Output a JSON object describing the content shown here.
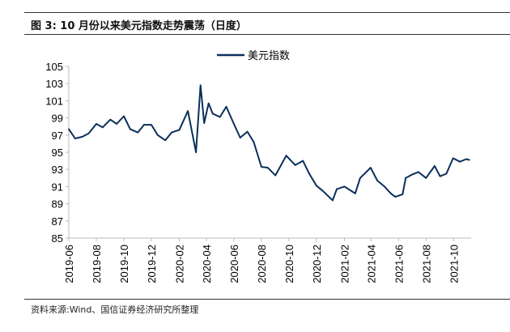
{
  "title": "图 3:  10 月份以来美元指数走势震荡（日度）",
  "source": "资料来源:Wind、国信证券经济研究所整理",
  "chart_data": {
    "type": "line",
    "title": "图 3:  10 月份以来美元指数走势震荡（日度）",
    "xlabel": "",
    "ylabel": "",
    "ylim": [
      85,
      105
    ],
    "yticks": [
      85,
      87,
      89,
      91,
      93,
      95,
      97,
      99,
      101,
      103,
      105
    ],
    "xticks": [
      "2019-06",
      "2019-08",
      "2019-10",
      "2019-12",
      "2020-02",
      "2020-04",
      "2020-06",
      "2020-08",
      "2020-10",
      "2020-12",
      "2021-02",
      "2021-04",
      "2021-06",
      "2021-08",
      "2021-10"
    ],
    "xrange": [
      "2019-06-01",
      "2021-11-09"
    ],
    "grid": false,
    "legend": "top-center",
    "color": "#0b2f5b",
    "series": [
      {
        "name": "美元指数",
        "x": [
          "2019-06-01",
          "2019-06-15",
          "2019-07-01",
          "2019-07-15",
          "2019-08-01",
          "2019-08-15",
          "2019-09-01",
          "2019-09-15",
          "2019-10-01",
          "2019-10-15",
          "2019-11-01",
          "2019-11-15",
          "2019-12-01",
          "2019-12-15",
          "2020-01-01",
          "2020-01-15",
          "2020-02-01",
          "2020-02-20",
          "2020-03-09",
          "2020-03-19",
          "2020-03-27",
          "2020-04-06",
          "2020-04-15",
          "2020-05-01",
          "2020-05-15",
          "2020-06-01",
          "2020-06-15",
          "2020-07-01",
          "2020-07-15",
          "2020-08-01",
          "2020-08-15",
          "2020-09-01",
          "2020-09-25",
          "2020-10-15",
          "2020-11-01",
          "2020-11-15",
          "2020-12-01",
          "2020-12-15",
          "2021-01-06",
          "2021-01-15",
          "2021-02-01",
          "2021-02-25",
          "2021-03-08",
          "2021-03-31",
          "2021-04-15",
          "2021-05-01",
          "2021-05-15",
          "2021-05-25",
          "2021-06-10",
          "2021-06-17",
          "2021-07-01",
          "2021-07-15",
          "2021-08-01",
          "2021-08-20",
          "2021-09-01",
          "2021-09-15",
          "2021-09-30",
          "2021-10-15",
          "2021-10-29",
          "2021-11-05"
        ],
        "values": [
          97.7,
          96.6,
          96.8,
          97.2,
          98.3,
          97.9,
          98.8,
          98.3,
          99.2,
          97.7,
          97.3,
          98.2,
          98.2,
          97.0,
          96.4,
          97.3,
          97.6,
          99.8,
          95.0,
          102.8,
          98.4,
          100.7,
          99.5,
          99.1,
          100.3,
          98.3,
          96.7,
          97.4,
          96.2,
          93.3,
          93.2,
          92.3,
          94.6,
          93.5,
          94.0,
          92.5,
          91.1,
          90.5,
          89.4,
          90.7,
          91.0,
          90.2,
          92.0,
          93.2,
          91.7,
          91.0,
          90.2,
          89.8,
          90.1,
          92.0,
          92.4,
          92.7,
          92.0,
          93.4,
          92.2,
          92.5,
          94.3,
          93.9,
          94.2,
          94.1
        ]
      }
    ]
  }
}
